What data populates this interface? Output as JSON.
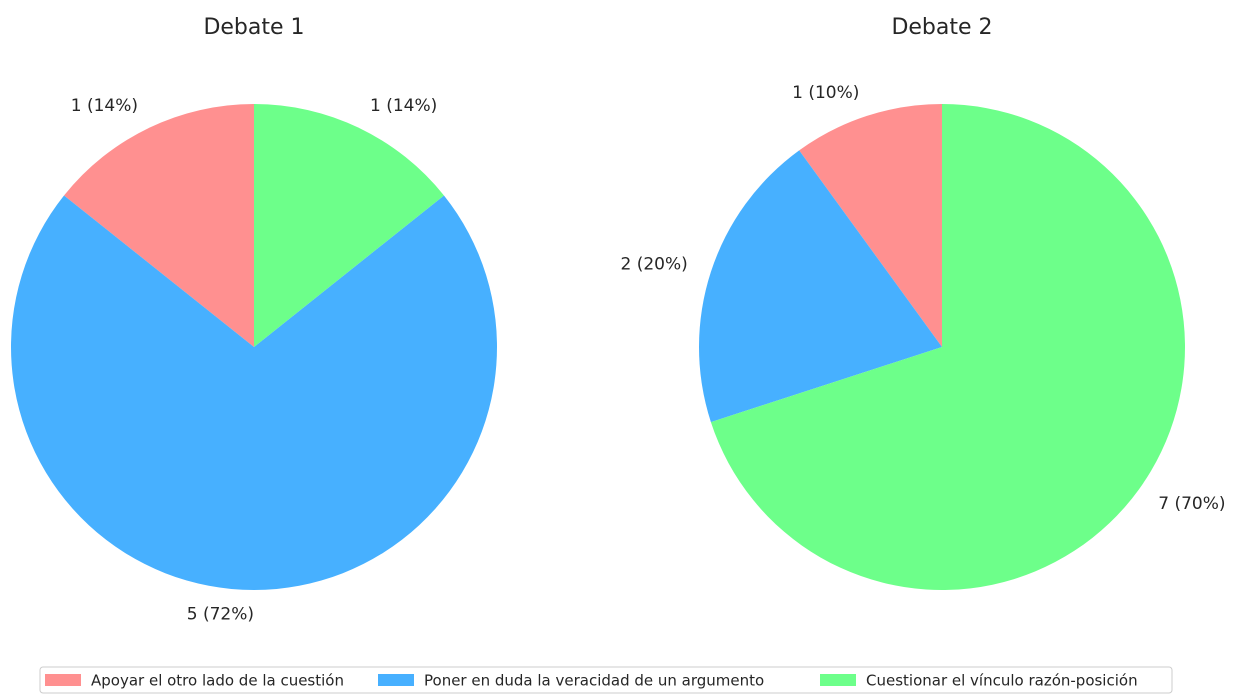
{
  "chart_data": [
    {
      "type": "pie",
      "title": "Debate 1",
      "categories": [
        "Apoyar el otro lado de la cuestión",
        "Poner en duda la veracidad de un argumento",
        "Cuestionar el vínculo razón-posición"
      ],
      "values": [
        1,
        5,
        1
      ],
      "value_labels": [
        "1 (14%)",
        "5 (72%)",
        "1 (14%)"
      ],
      "colors": [
        "#ff9090",
        "#47b0ff",
        "#6dff8a"
      ]
    },
    {
      "type": "pie",
      "title": "Debate 2",
      "categories": [
        "Apoyar el otro lado de la cuestión",
        "Poner en duda la veracidad de un argumento",
        "Cuestionar el vínculo razón-posición"
      ],
      "values": [
        1,
        2,
        7
      ],
      "value_labels": [
        "1 (10%)",
        "2 (20%)",
        "7 (70%)"
      ],
      "colors": [
        "#ff9090",
        "#47b0ff",
        "#6dff8a"
      ]
    }
  ]
}
